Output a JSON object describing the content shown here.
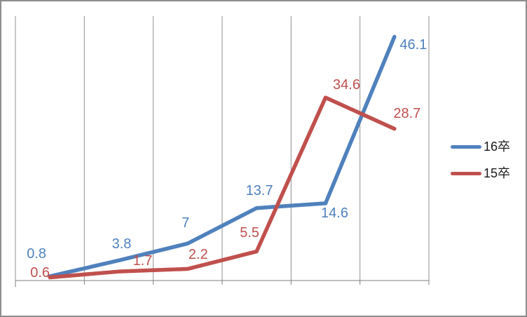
{
  "chart_data": {
    "type": "line",
    "title": "",
    "categories": [
      "",
      "",
      "",
      "",
      "",
      ""
    ],
    "series": [
      {
        "name": "16卒",
        "color": "#4F81BD",
        "values": [
          0.8,
          3.8,
          7,
          13.7,
          14.6,
          46.1
        ],
        "label_offsets": [
          [
            -21,
            -34
          ],
          [
            2,
            -25
          ],
          [
            -5,
            -31
          ],
          [
            2,
            -27
          ],
          [
            11,
            12
          ],
          [
            25,
            10
          ]
        ]
      },
      {
        "name": "15卒",
        "color": "#C0504D",
        "values": [
          0.6,
          1.7,
          2.2,
          5.5,
          34.6,
          28.7
        ],
        "label_offsets": [
          [
            -16,
            -8
          ],
          [
            32,
            -17
          ],
          [
            13,
            -22
          ],
          [
            -12,
            -29
          ],
          [
            28,
            -20
          ],
          [
            16,
            -24
          ]
        ]
      }
    ],
    "xlabel": "",
    "ylabel": "",
    "ylim": [
      0,
      50
    ],
    "grid": "vertical-only",
    "legend_position": "right",
    "colors": {
      "gridline": "#8f8f8f",
      "axis": "#7f7f7f",
      "border": "#8e8e8e",
      "background": "#ffffff",
      "legend_text": "#1a1a1a"
    }
  }
}
